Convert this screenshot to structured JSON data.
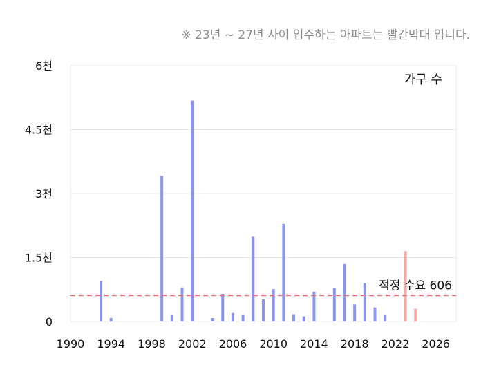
{
  "note": "※ 23년 ~ 27년 사이 입주하는 아파트는 빨간막대 입니다.",
  "colors": {
    "bar": "#8c95ee",
    "bar_highlight": "#f6a9a9",
    "reference": "#f07070",
    "grid": "#e8e8e8",
    "text": "#111111"
  },
  "chart_data": {
    "type": "bar",
    "legend_label": "가구 수",
    "legend_position": "top-right",
    "grid": true,
    "xlim": [
      1990,
      2028
    ],
    "ylim": [
      0,
      6000
    ],
    "x_ticks": [
      1990,
      1994,
      1998,
      2002,
      2006,
      2010,
      2014,
      2018,
      2022,
      2026
    ],
    "y_ticks": [
      {
        "value": 0,
        "label": "0"
      },
      {
        "value": 1500,
        "label": "1.5천"
      },
      {
        "value": 3000,
        "label": "3천"
      },
      {
        "value": 4500,
        "label": "4.5천"
      },
      {
        "value": 6000,
        "label": "6천"
      }
    ],
    "reference_line": {
      "value": 606,
      "label": "적정 수요 606"
    },
    "highlight_from_year": 2023,
    "x": [
      1993,
      1994,
      1999,
      2000,
      2001,
      2002,
      2004,
      2005,
      2006,
      2007,
      2008,
      2009,
      2010,
      2011,
      2012,
      2013,
      2014,
      2016,
      2017,
      2018,
      2019,
      2020,
      2021,
      2023,
      2024
    ],
    "values": [
      950,
      80,
      3420,
      150,
      800,
      5180,
      80,
      640,
      200,
      150,
      1990,
      520,
      760,
      2290,
      170,
      120,
      700,
      790,
      1350,
      400,
      900,
      330,
      150,
      1650,
      300
    ]
  }
}
